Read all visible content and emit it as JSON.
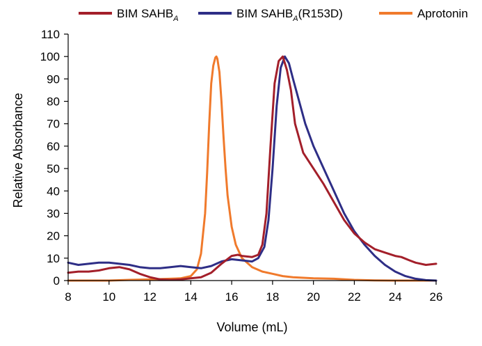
{
  "chart_data": {
    "type": "line",
    "title": "",
    "xlabel": "Volume (mL)",
    "ylabel": "Relative Absorbance",
    "xlim": [
      8,
      26
    ],
    "ylim": [
      0,
      110
    ],
    "x_ticks": [
      8,
      10,
      12,
      14,
      16,
      18,
      20,
      22,
      24,
      26
    ],
    "y_ticks": [
      0,
      10,
      20,
      30,
      40,
      50,
      60,
      70,
      80,
      90,
      100,
      110
    ],
    "x_tick_labels": [
      "8",
      "10",
      "12",
      "14",
      "16",
      "18",
      "20",
      "22",
      "24",
      "26"
    ],
    "y_tick_labels": [
      "0",
      "10",
      "20",
      "30",
      "40",
      "50",
      "60",
      "70",
      "80",
      "90",
      "100",
      "110"
    ],
    "grid": false,
    "legend_position": "top",
    "series": [
      {
        "name": "BIM SAHBA",
        "legend_main": "BIM SAHB",
        "legend_sub": "A",
        "legend_suffix": "",
        "color": "#a31f2a",
        "x": [
          8.0,
          8.5,
          9.0,
          9.5,
          10.0,
          10.5,
          11.0,
          11.5,
          12.0,
          12.5,
          13.0,
          13.5,
          14.0,
          14.5,
          15.0,
          15.5,
          16.0,
          16.3,
          16.5,
          17.0,
          17.3,
          17.5,
          17.7,
          17.9,
          18.1,
          18.3,
          18.5,
          18.7,
          18.9,
          19.1,
          19.5,
          20.0,
          20.5,
          21.0,
          21.5,
          22.0,
          22.5,
          23.0,
          23.5,
          24.0,
          24.3,
          24.7,
          25.0,
          25.5,
          26.0
        ],
        "y": [
          3.5,
          4,
          4,
          4.5,
          5.5,
          6,
          5,
          3,
          1.5,
          0.5,
          0.3,
          0.5,
          1,
          1.5,
          3.5,
          7.5,
          11,
          11.5,
          11,
          10.5,
          11.5,
          16,
          30,
          60,
          88,
          98,
          100,
          94,
          85,
          70,
          57,
          50,
          43,
          35,
          27,
          21,
          17,
          14,
          12.5,
          11,
          10.5,
          9,
          8,
          7,
          7.5
        ]
      },
      {
        "name": "BIM SAHBA(R153D)",
        "legend_main": "BIM SAHB",
        "legend_sub": "A",
        "legend_suffix": "(R153D)",
        "color": "#2e2e86",
        "x": [
          8.0,
          8.5,
          9.0,
          9.5,
          10.0,
          10.5,
          11.0,
          11.5,
          12.0,
          12.5,
          13.0,
          13.5,
          14.0,
          14.5,
          15.0,
          15.5,
          16.0,
          16.5,
          17.0,
          17.3,
          17.6,
          17.8,
          18.0,
          18.2,
          18.4,
          18.6,
          18.8,
          19.0,
          19.3,
          19.6,
          20.0,
          20.5,
          21.0,
          21.5,
          22.0,
          22.5,
          23.0,
          23.5,
          24.0,
          24.5,
          25.0,
          25.5,
          26.0
        ],
        "y": [
          8,
          7,
          7.5,
          8,
          8,
          7.5,
          7,
          6,
          5.5,
          5.5,
          6,
          6.5,
          6,
          5.5,
          6.5,
          8.5,
          9.5,
          9,
          8.5,
          10,
          15,
          27,
          50,
          78,
          95,
          100,
          97,
          90,
          80,
          70,
          60,
          50,
          40,
          30,
          22,
          16,
          11,
          7,
          4,
          2,
          0.8,
          0.2,
          0
        ]
      },
      {
        "name": "Aprotonin",
        "legend_main": "Aprotonin",
        "legend_sub": "",
        "legend_suffix": "",
        "color": "#f07a2c",
        "x": [
          8.0,
          9.0,
          10.0,
          11.0,
          12.0,
          13.0,
          13.5,
          14.0,
          14.3,
          14.5,
          14.7,
          14.8,
          14.9,
          15.0,
          15.1,
          15.2,
          15.25,
          15.3,
          15.4,
          15.5,
          15.6,
          15.7,
          15.8,
          16.0,
          16.2,
          16.5,
          17.0,
          17.5,
          18.0,
          18.5,
          19.0,
          20.0,
          21.0,
          22.0,
          23.0,
          24.0,
          25.0,
          26.0
        ],
        "y": [
          0,
          0,
          0,
          0.3,
          0.5,
          0.8,
          1,
          2,
          5,
          12,
          30,
          48,
          70,
          88,
          96,
          99.5,
          100,
          99,
          93,
          80,
          64,
          50,
          38,
          24,
          16,
          10,
          6,
          4,
          3,
          2,
          1.5,
          1,
          0.8,
          0.3,
          0.1,
          0,
          0,
          0
        ]
      }
    ]
  }
}
